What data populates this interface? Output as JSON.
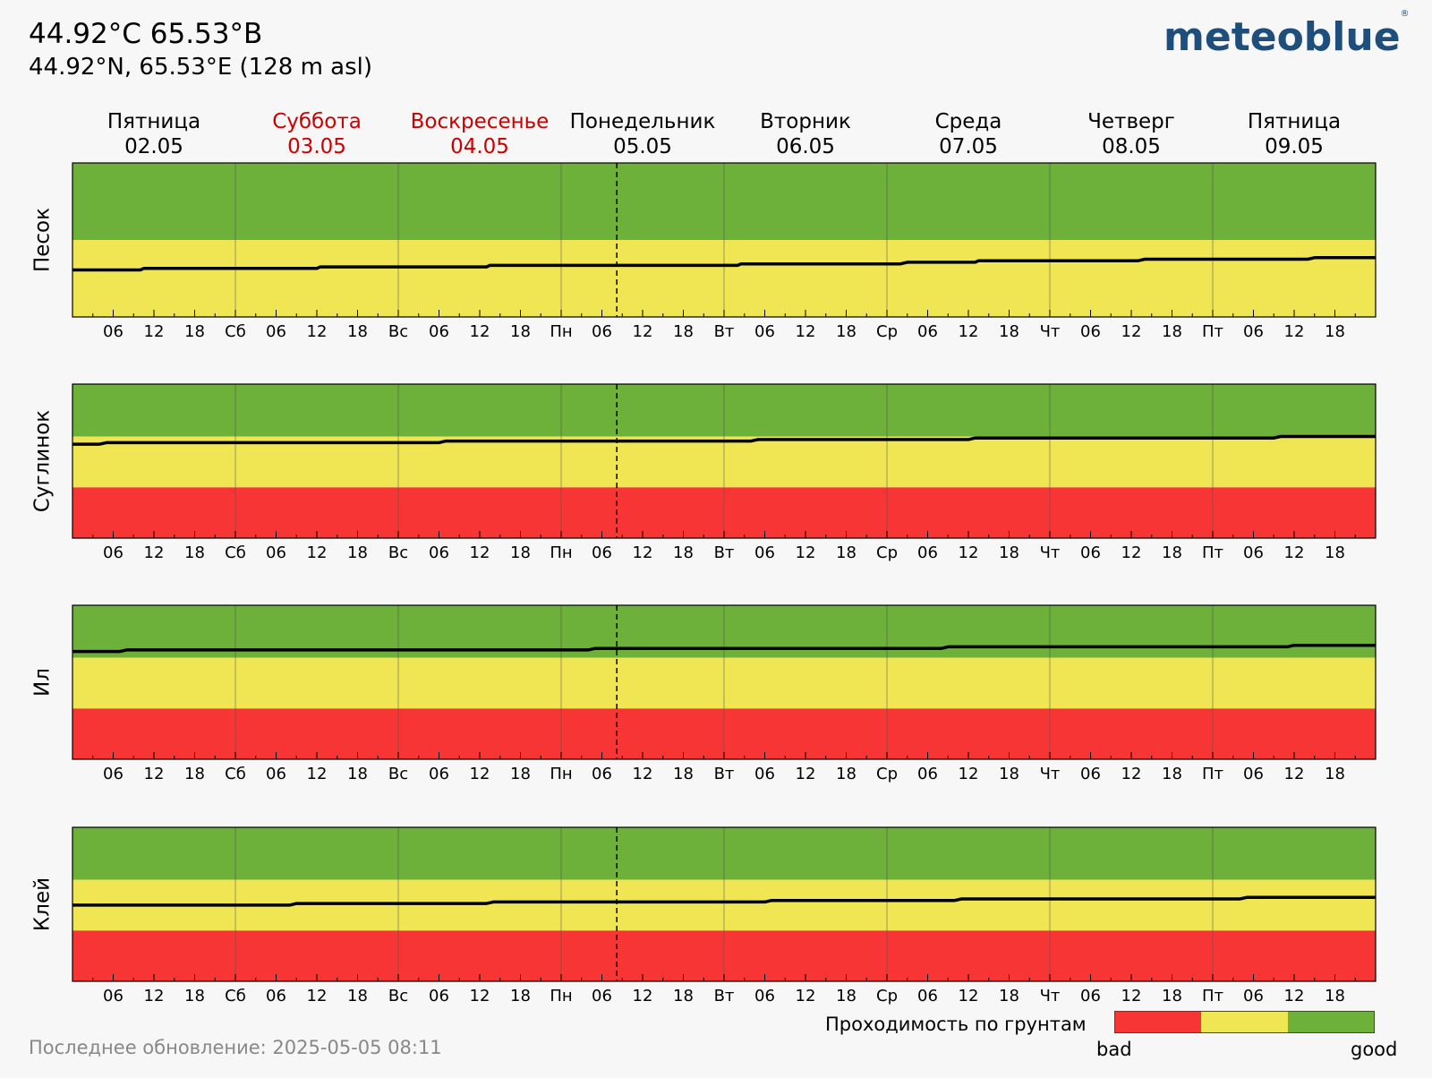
{
  "header": {
    "title": "44.92°C 65.53°B",
    "subtitle": "44.92°N, 65.53°E (128 m asl)",
    "logo": "meteoblue",
    "logo_mark": "®"
  },
  "footer": {
    "updated": "Последнее обновление: 2025-05-05 08:11"
  },
  "legend": {
    "title": "Проходимость по грунтам",
    "low_label": "bad",
    "high_label": "good",
    "colors": [
      "#f73535",
      "#f0e654",
      "#6db03a"
    ]
  },
  "chart_data": {
    "type": "area",
    "colors": {
      "red": "#f73535",
      "yellow": "#f0e654",
      "green": "#6db03a",
      "line": "#000000",
      "weekend": "#cc0000"
    },
    "days": [
      {
        "name": "Пятница",
        "date": "02.05",
        "weekend": false
      },
      {
        "name": "Суббота",
        "date": "03.05",
        "weekend": true
      },
      {
        "name": "Воскресенье",
        "date": "04.05",
        "weekend": true
      },
      {
        "name": "Понедельник",
        "date": "05.05",
        "weekend": false
      },
      {
        "name": "Вторник",
        "date": "06.05",
        "weekend": false
      },
      {
        "name": "Среда",
        "date": "07.05",
        "weekend": false
      },
      {
        "name": "Четверг",
        "date": "08.05",
        "weekend": false
      },
      {
        "name": "Пятница",
        "date": "09.05",
        "weekend": false
      }
    ],
    "day_abbrevs": [
      "",
      "Сб",
      "Вс",
      "Пн",
      "Вт",
      "Ср",
      "Чт",
      "Пт"
    ],
    "hour_ticks": [
      "06",
      "12",
      "18"
    ],
    "x_range_hours": [
      0,
      192
    ],
    "now_hour": 80.2,
    "ylim": [
      0,
      1
    ],
    "panels": [
      {
        "label": "Песок",
        "bands": [
          {
            "from": 0,
            "to": 0.5,
            "color": "yellow"
          },
          {
            "from": 0.5,
            "to": 1,
            "color": "green"
          }
        ],
        "series": [
          {
            "h": 0,
            "y": 0.305
          },
          {
            "h": 10,
            "y": 0.305
          },
          {
            "h": 10.5,
            "y": 0.315
          },
          {
            "h": 36,
            "y": 0.315
          },
          {
            "h": 36.5,
            "y": 0.325
          },
          {
            "h": 61,
            "y": 0.325
          },
          {
            "h": 61.5,
            "y": 0.335
          },
          {
            "h": 98,
            "y": 0.335
          },
          {
            "h": 98.5,
            "y": 0.345
          },
          {
            "h": 122,
            "y": 0.345
          },
          {
            "h": 123,
            "y": 0.355
          },
          {
            "h": 133,
            "y": 0.355
          },
          {
            "h": 133.5,
            "y": 0.365
          },
          {
            "h": 157,
            "y": 0.365
          },
          {
            "h": 158,
            "y": 0.375
          },
          {
            "h": 182,
            "y": 0.375
          },
          {
            "h": 183,
            "y": 0.385
          },
          {
            "h": 192,
            "y": 0.385
          }
        ]
      },
      {
        "label": "Суглинок",
        "bands": [
          {
            "from": 0,
            "to": 0.33,
            "color": "red"
          },
          {
            "from": 0.33,
            "to": 0.66,
            "color": "yellow"
          },
          {
            "from": 0.66,
            "to": 1,
            "color": "green"
          }
        ],
        "series": [
          {
            "h": 0,
            "y": 0.61
          },
          {
            "h": 4,
            "y": 0.61
          },
          {
            "h": 5,
            "y": 0.62
          },
          {
            "h": 54,
            "y": 0.62
          },
          {
            "h": 55,
            "y": 0.63
          },
          {
            "h": 100,
            "y": 0.63
          },
          {
            "h": 101,
            "y": 0.64
          },
          {
            "h": 132,
            "y": 0.64
          },
          {
            "h": 133,
            "y": 0.65
          },
          {
            "h": 177,
            "y": 0.65
          },
          {
            "h": 178,
            "y": 0.66
          },
          {
            "h": 192,
            "y": 0.66
          }
        ]
      },
      {
        "label": "Ил",
        "bands": [
          {
            "from": 0,
            "to": 0.33,
            "color": "red"
          },
          {
            "from": 0.33,
            "to": 0.66,
            "color": "yellow"
          },
          {
            "from": 0.66,
            "to": 1,
            "color": "green"
          }
        ],
        "series": [
          {
            "h": 0,
            "y": 0.7
          },
          {
            "h": 7,
            "y": 0.7
          },
          {
            "h": 8,
            "y": 0.71
          },
          {
            "h": 76,
            "y": 0.71
          },
          {
            "h": 77,
            "y": 0.72
          },
          {
            "h": 128,
            "y": 0.72
          },
          {
            "h": 129,
            "y": 0.73
          },
          {
            "h": 179,
            "y": 0.73
          },
          {
            "h": 180,
            "y": 0.74
          },
          {
            "h": 192,
            "y": 0.74
          }
        ]
      },
      {
        "label": "Клей",
        "bands": [
          {
            "from": 0,
            "to": 0.33,
            "color": "red"
          },
          {
            "from": 0.33,
            "to": 0.66,
            "color": "yellow"
          },
          {
            "from": 0.66,
            "to": 1,
            "color": "green"
          }
        ],
        "series": [
          {
            "h": 0,
            "y": 0.495
          },
          {
            "h": 32,
            "y": 0.495
          },
          {
            "h": 33,
            "y": 0.505
          },
          {
            "h": 61,
            "y": 0.505
          },
          {
            "h": 62,
            "y": 0.515
          },
          {
            "h": 102,
            "y": 0.515
          },
          {
            "h": 103,
            "y": 0.525
          },
          {
            "h": 130,
            "y": 0.525
          },
          {
            "h": 131,
            "y": 0.535
          },
          {
            "h": 172,
            "y": 0.535
          },
          {
            "h": 173,
            "y": 0.545
          },
          {
            "h": 192,
            "y": 0.545
          }
        ]
      }
    ]
  }
}
